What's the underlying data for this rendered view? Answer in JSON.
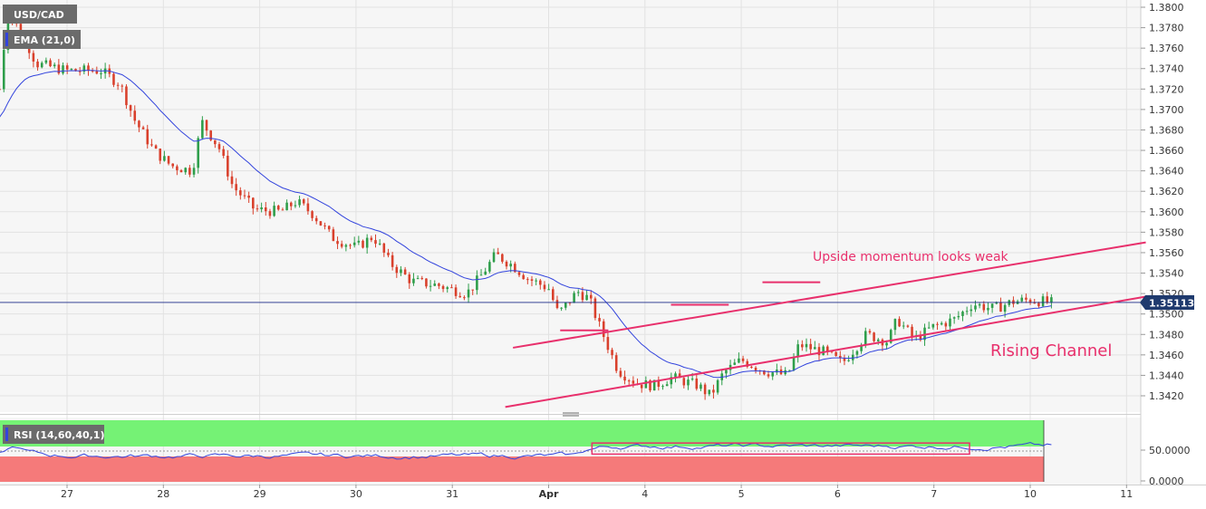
{
  "chart_data": {
    "type": "candlestick",
    "symbol": "USD/CAD",
    "indicator_label": "EMA (21,0)",
    "rsi_label": "RSI (14,60,40,1)",
    "price_axis": {
      "min": 1.3405,
      "max": 1.3805,
      "ticks": [
        "1.3800",
        "1.3780",
        "1.3760",
        "1.3740",
        "1.3720",
        "1.3700",
        "1.3680",
        "1.3660",
        "1.3640",
        "1.3620",
        "1.3600",
        "1.3580",
        "1.3560",
        "1.3540",
        "1.3520",
        "1.3500",
        "1.3480",
        "1.3460",
        "1.3440",
        "1.3420"
      ]
    },
    "current_price": "1.35113",
    "current_value": 1.35113,
    "x_labels": [
      "27",
      "28",
      "29",
      "30",
      "31",
      "Apr",
      "4",
      "5",
      "6",
      "7",
      "10",
      "11"
    ],
    "rsi_axis": {
      "min": 0,
      "max": 100,
      "ticks": [
        "50.0000",
        "0.0000"
      ],
      "upper_band": 60,
      "lower_band": 40
    },
    "annotations": {
      "momentum_text": "Upside momentum looks weak",
      "channel_text": "Rising Channel"
    },
    "trendlines": [
      {
        "name": "upper-channel",
        "x1": 4.63,
        "y1": 1.3467,
        "x2": 11.2,
        "y2": 1.357
      },
      {
        "name": "lower-channel",
        "x1": 4.55,
        "y1": 1.3409,
        "x2": 11.2,
        "y2": 1.3517
      }
    ],
    "resistance_marks": [
      {
        "x1": 5.12,
        "x2": 5.62,
        "y": 1.3484
      },
      {
        "x1": 6.27,
        "x2": 6.87,
        "y": 1.3509
      },
      {
        "x1": 7.22,
        "x2": 7.82,
        "y": 1.3531
      }
    ],
    "rsi_box": {
      "x1": 5.45,
      "x2": 9.37,
      "y1": 63,
      "y2": 45
    },
    "colors": {
      "bull": "#2e9e4a",
      "bear": "#d9402c",
      "ema": "#3344dd",
      "annotation": "#e8306c",
      "rsi_upper": "#75f275",
      "rsi_lower": "#f57a7a",
      "rsi_line": "#3344dd",
      "price_line": "#1a2a88",
      "price_badge": "#1f3a6e"
    }
  }
}
